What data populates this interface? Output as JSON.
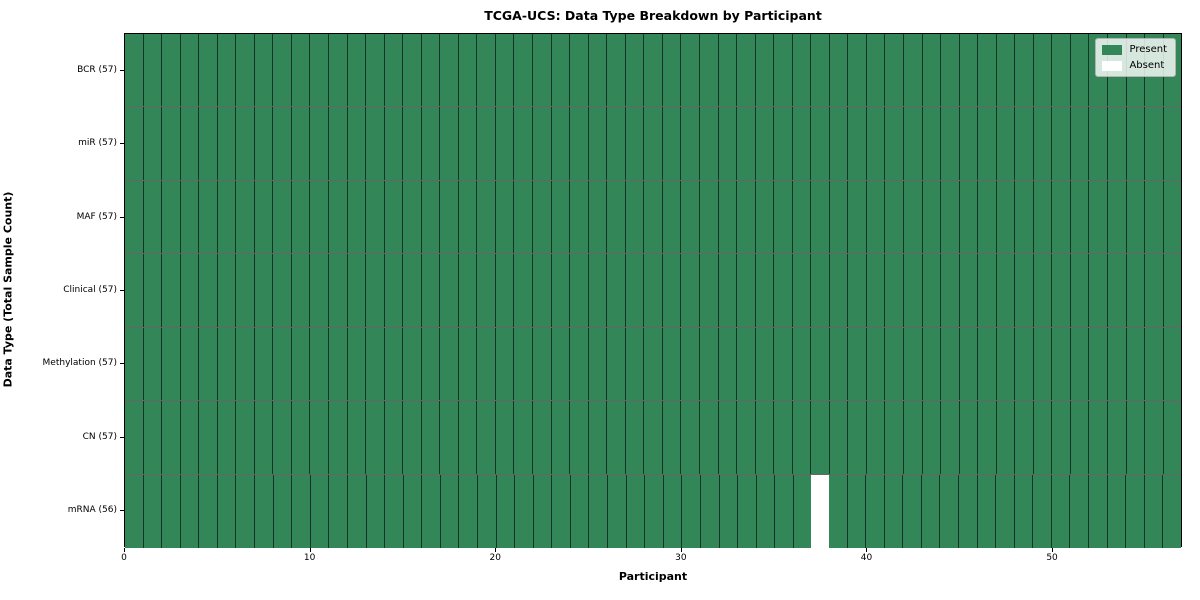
{
  "chart_data": {
    "type": "heatmap",
    "title": "TCGA-UCS: Data Type Breakdown by Participant",
    "xlabel": "Participant",
    "ylabel": "Data Type (Total Sample Count)",
    "rows": [
      {
        "label": "BCR (57)",
        "data_type": "BCR",
        "total_sample_count": 57
      },
      {
        "label": "miR (57)",
        "data_type": "miR",
        "total_sample_count": 57
      },
      {
        "label": "MAF (57)",
        "data_type": "MAF",
        "total_sample_count": 57
      },
      {
        "label": "Clinical (57)",
        "data_type": "Clinical",
        "total_sample_count": 57
      },
      {
        "label": "Methylation (57)",
        "data_type": "Methylation",
        "total_sample_count": 57
      },
      {
        "label": "CN (57)",
        "data_type": "CN",
        "total_sample_count": 57
      },
      {
        "label": "mRNA (56)",
        "data_type": "mRNA",
        "total_sample_count": 56
      }
    ],
    "n_participants": 57,
    "x_range": [
      0,
      57
    ],
    "x_ticks": [
      0,
      10,
      20,
      30,
      40,
      50
    ],
    "cell_values_default": 1,
    "absent_cells": [
      {
        "row_label": "mRNA (56)",
        "row_index": 6,
        "participant": 37
      }
    ],
    "legend": {
      "position": "upper right",
      "entries": [
        {
          "label": "Present",
          "color": "#338657"
        },
        {
          "label": "Absent",
          "color": "#ffffff"
        }
      ]
    },
    "colors": {
      "present": "#338657",
      "absent": "#ffffff",
      "cell_edge": "rgba(0,0,0,0.6)",
      "spine": "#000000"
    },
    "grid": "cell-edges",
    "legend_visible": true
  }
}
